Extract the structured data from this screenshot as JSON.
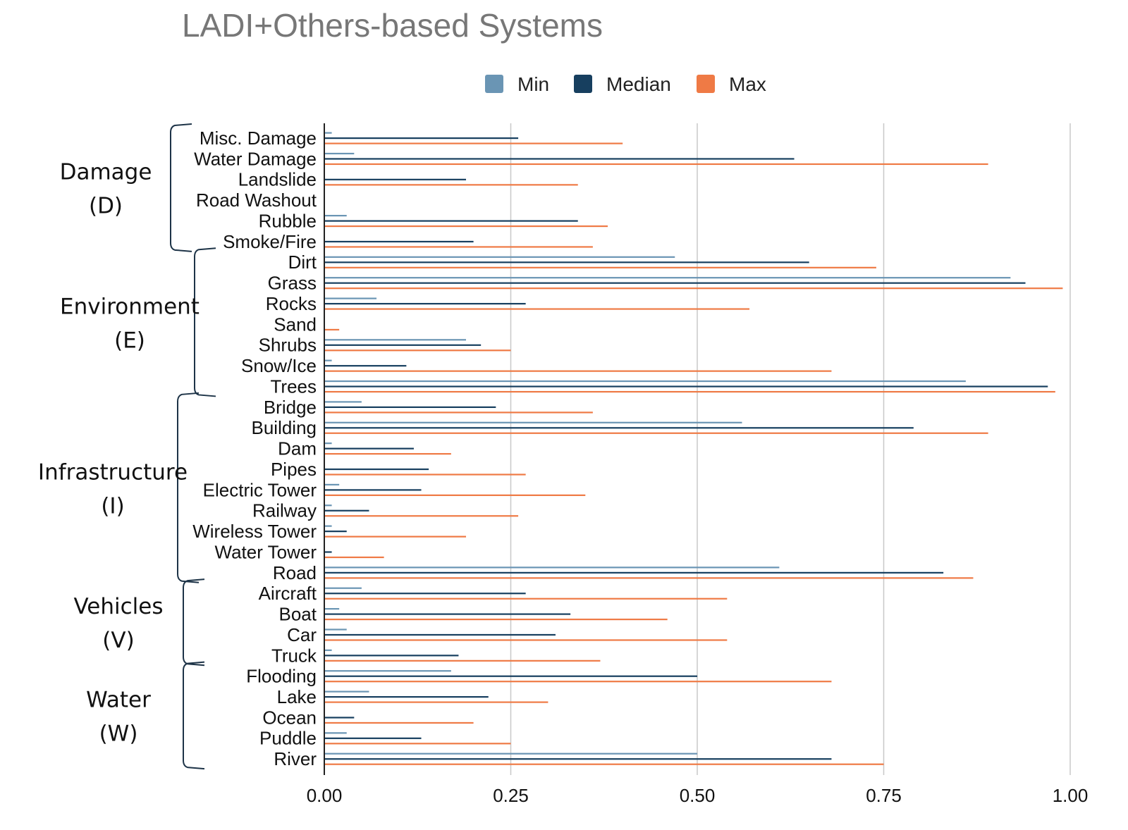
{
  "chart_data": {
    "type": "bar",
    "orientation": "horizontal",
    "title": "LADI+Others-based Systems",
    "xlabel": "",
    "ylabel": "",
    "xlim": [
      0,
      1
    ],
    "xticks": [
      "0.00",
      "0.25",
      "0.50",
      "0.75",
      "1.00"
    ],
    "xtick_values": [
      0,
      0.25,
      0.5,
      0.75,
      1.0
    ],
    "grid": true,
    "legend_position": "top",
    "colors": {
      "Min": "#6a95b4",
      "Median": "#173f5f",
      "Max": "#ef7a45"
    },
    "categories": [
      "Misc. Damage",
      "Water Damage",
      "Landslide",
      "Road Washout",
      "Rubble",
      "Smoke/Fire",
      "Dirt",
      "Grass",
      "Rocks",
      "Sand",
      "Shrubs",
      "Snow/Ice",
      "Trees",
      "Bridge",
      "Building",
      "Dam",
      "Pipes",
      "Electric Tower",
      "Railway",
      "Wireless Tower",
      "Water Tower",
      "Road",
      "Aircraft",
      "Boat",
      "Car",
      "Truck",
      "Flooding",
      "Lake",
      "Ocean",
      "Puddle",
      "River"
    ],
    "series": [
      {
        "name": "Min",
        "values": [
          0.01,
          0.04,
          0.0,
          0.0,
          0.03,
          0.0,
          0.47,
          0.92,
          0.07,
          0.0,
          0.19,
          0.01,
          0.86,
          0.05,
          0.56,
          0.01,
          0.0,
          0.02,
          0.01,
          0.01,
          0.0,
          0.61,
          0.05,
          0.02,
          0.03,
          0.01,
          0.17,
          0.06,
          0.0,
          0.03,
          0.5
        ]
      },
      {
        "name": "Median",
        "values": [
          0.26,
          0.63,
          0.19,
          0.0,
          0.34,
          0.2,
          0.65,
          0.94,
          0.27,
          0.0,
          0.21,
          0.11,
          0.97,
          0.23,
          0.79,
          0.12,
          0.14,
          0.13,
          0.06,
          0.03,
          0.01,
          0.83,
          0.27,
          0.33,
          0.31,
          0.18,
          0.5,
          0.22,
          0.04,
          0.13,
          0.68
        ]
      },
      {
        "name": "Max",
        "values": [
          0.4,
          0.89,
          0.34,
          0.0,
          0.38,
          0.36,
          0.74,
          0.99,
          0.57,
          0.02,
          0.25,
          0.68,
          0.98,
          0.36,
          0.89,
          0.17,
          0.27,
          0.35,
          0.26,
          0.19,
          0.08,
          0.87,
          0.54,
          0.46,
          0.54,
          0.37,
          0.68,
          0.3,
          0.2,
          0.25,
          0.75
        ]
      }
    ],
    "groups": [
      {
        "line1": "Damage",
        "line2": "(D)",
        "start": 0,
        "end": 5
      },
      {
        "line1": "Environment",
        "line2": "(E)",
        "start": 6,
        "end": 12
      },
      {
        "line1": "Infrastructure",
        "line2": "(I)",
        "start": 13,
        "end": 21
      },
      {
        "line1": "Vehicles",
        "line2": "(V)",
        "start": 22,
        "end": 25
      },
      {
        "line1": "Water",
        "line2": "(W)",
        "start": 26,
        "end": 30
      }
    ]
  }
}
